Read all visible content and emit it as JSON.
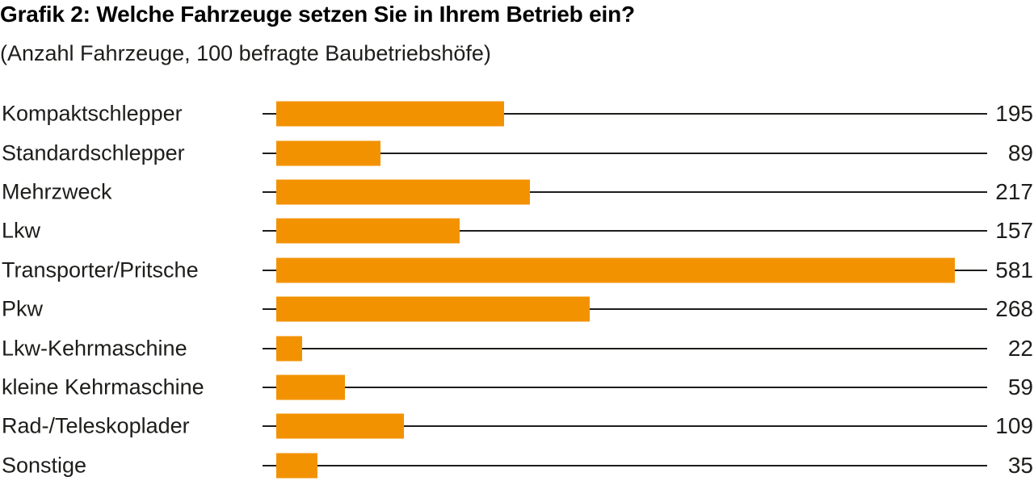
{
  "title": "Grafik 2: Welche Fahrzeuge setzen Sie in Ihrem Betrieb ein?",
  "subtitle": "(Anzahl Fahrzeuge, 100 befragte Baubetriebshöfe)",
  "colors": {
    "bar": "#F39200",
    "line": "#1D1D1B",
    "text": "#1D1D1B",
    "background": "#FFFFFF"
  },
  "chart_data": {
    "type": "bar",
    "orientation": "horizontal",
    "title": "Grafik 2: Welche Fahrzeuge setzen Sie in Ihrem Betrieb ein?",
    "subtitle": "(Anzahl Fahrzeuge, 100 befragte Baubetriebshöfe)",
    "categories": [
      "Kompaktschlepper",
      "Standardschlepper",
      "Mehrzweck",
      "Lkw",
      "Transporter/Pritsche",
      "Pkw",
      "Lkw-Kehrmaschine",
      "kleine Kehrmaschine",
      "Rad-/Teleskoplader",
      "Sonstige"
    ],
    "values": [
      195,
      89,
      217,
      157,
      581,
      268,
      22,
      59,
      109,
      35
    ],
    "xlabel": "",
    "ylabel": "",
    "xlim": [
      0,
      600
    ],
    "grid": false,
    "legend": false,
    "value_label_position": "right-edge",
    "leader_lines": true
  }
}
